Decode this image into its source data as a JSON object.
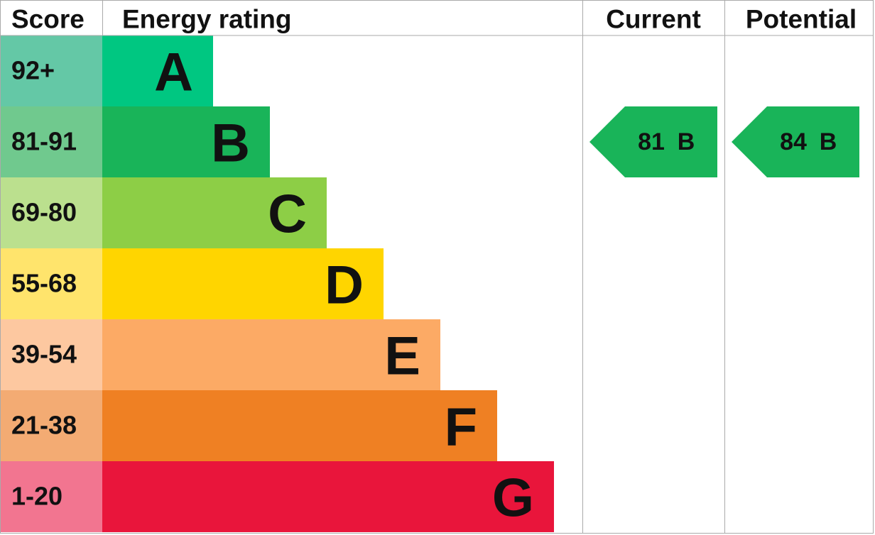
{
  "header": {
    "score": "Score",
    "energy_rating": "Energy rating",
    "current": "Current",
    "potential": "Potential"
  },
  "bands": [
    {
      "score": "92+",
      "rating": "A",
      "color": "#00c781",
      "score_color": "#64c8a6"
    },
    {
      "score": "81-91",
      "rating": "B",
      "color": "#19b459",
      "score_color": "#70c98e"
    },
    {
      "score": "69-80",
      "rating": "C",
      "color": "#8dce46",
      "score_color": "#bbe08e"
    },
    {
      "score": "55-68",
      "rating": "D",
      "color": "#ffd500",
      "score_color": "#ffe46c"
    },
    {
      "score": "39-54",
      "rating": "E",
      "color": "#fcaa65",
      "score_color": "#fdc8a0"
    },
    {
      "score": "21-38",
      "rating": "F",
      "color": "#ef8023",
      "score_color": "#f3ab73"
    },
    {
      "score": "1-20",
      "rating": "G",
      "color": "#e9153b",
      "score_color": "#f27590"
    }
  ],
  "current": {
    "score": "81",
    "rating": "B"
  },
  "potential": {
    "score": "84",
    "rating": "B"
  }
}
